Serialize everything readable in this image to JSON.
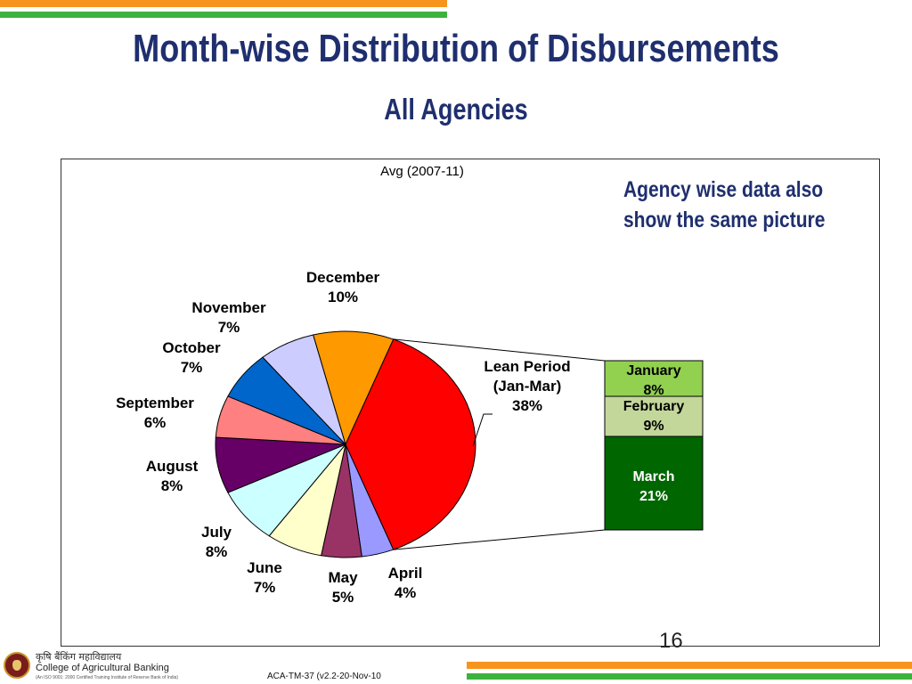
{
  "slide": {
    "title": "Month-wise Distribution of Disbursements",
    "subtitle": "All Agencies",
    "note": "Agency wise data also show the same picture",
    "page_number": "16",
    "footer": {
      "hindi": "कृषि बैंकिंग महाविद्यालय",
      "college": "College of Agricultural Banking",
      "iso": "(An ISO 9001: 2000 Certified Training Institute of Reserve Bank of India)",
      "code": "ACA-TM-37 (v2.2-20-Nov-10"
    },
    "colors": {
      "title": "#1f2f6e",
      "orange_stripe": "#f7941d",
      "green_stripe": "#3db33d"
    }
  },
  "chart_data": {
    "type": "pie",
    "title": "Avg (2007-11)",
    "slices": [
      {
        "label": "April",
        "value": 4,
        "value_label": "4%",
        "color": "#9999ff"
      },
      {
        "label": "May",
        "value": 5,
        "value_label": "5%",
        "color": "#993366"
      },
      {
        "label": "June",
        "value": 7,
        "value_label": "7%",
        "color": "#ffffcc"
      },
      {
        "label": "July",
        "value": 8,
        "value_label": "8%",
        "color": "#ccffff"
      },
      {
        "label": "August",
        "value": 8,
        "value_label": "8%",
        "color": "#660066"
      },
      {
        "label": "September",
        "value": 6,
        "value_label": "6%",
        "color": "#ff8080"
      },
      {
        "label": "October",
        "value": 7,
        "value_label": "7%",
        "color": "#0066cc"
      },
      {
        "label": "November",
        "value": 7,
        "value_label": "7%",
        "color": "#ccccff"
      },
      {
        "label": "December",
        "value": 10,
        "value_label": "10%",
        "color": "#ff9900"
      },
      {
        "label": "Lean Period (Jan-Mar)",
        "label_lines": [
          "Lean Period",
          "(Jan-Mar)"
        ],
        "value": 38,
        "value_label": "38%",
        "color": "#ff0000"
      }
    ],
    "breakdown": {
      "of": "Lean Period (Jan-Mar)",
      "items": [
        {
          "label": "January",
          "value": 8,
          "value_label": "8%",
          "color": "#92d050"
        },
        {
          "label": "February",
          "value": 9,
          "value_label": "9%",
          "color": "#c4d79b"
        },
        {
          "label": "March",
          "value": 21,
          "value_label": "21%",
          "color": "#006600"
        }
      ]
    }
  }
}
